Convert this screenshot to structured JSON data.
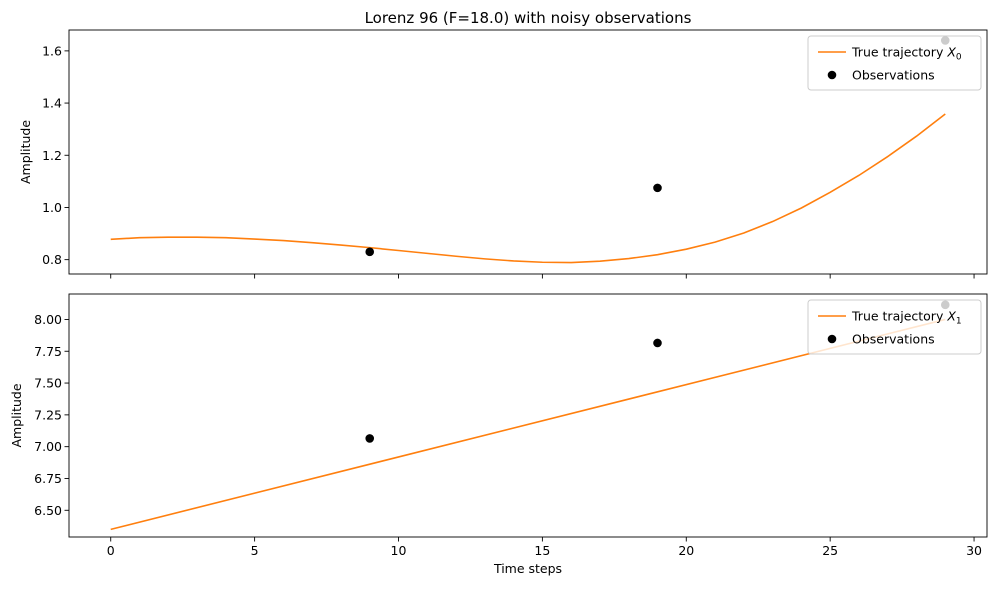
{
  "chart_data": [
    {
      "type": "line",
      "title": "Lorenz 96 (F=18.0) with noisy observations",
      "xlabel": "",
      "ylabel": "Amplitude",
      "xlim": [
        -1.45,
        30.45
      ],
      "ylim": [
        0.745,
        1.68
      ],
      "xticks": [
        0,
        5,
        10,
        15,
        20,
        25,
        30
      ],
      "xtick_labels_visible": false,
      "yticks": [
        0.8,
        1.0,
        1.2,
        1.4,
        1.6
      ],
      "ytick_labels": [
        "0.8",
        "1.0",
        "1.2",
        "1.4",
        "1.6"
      ],
      "grid": false,
      "legend_position": "top-right",
      "series": [
        {
          "name": "True trajectory X0",
          "name_text": "True trajectory ",
          "name_math": "X",
          "name_sub": "0",
          "kind": "line",
          "color": "#ff7f0e",
          "x": [
            0,
            1,
            2,
            3,
            4,
            5,
            6,
            7,
            8,
            9,
            10,
            11,
            12,
            13,
            14,
            15,
            16,
            17,
            18,
            19,
            20,
            21,
            22,
            23,
            24,
            25,
            26,
            27,
            28,
            29
          ],
          "y": [
            0.878,
            0.884,
            0.886,
            0.886,
            0.884,
            0.879,
            0.873,
            0.865,
            0.856,
            0.846,
            0.835,
            0.824,
            0.813,
            0.803,
            0.795,
            0.79,
            0.789,
            0.794,
            0.804,
            0.819,
            0.84,
            0.867,
            0.902,
            0.946,
            0.998,
            1.058,
            1.123,
            1.195,
            1.273,
            1.358
          ]
        },
        {
          "name": "Observations",
          "kind": "scatter",
          "color": "#000000",
          "x": [
            9,
            19,
            29
          ],
          "y": [
            0.83,
            1.075,
            1.64
          ]
        }
      ]
    },
    {
      "type": "line",
      "title": "",
      "xlabel": "Time steps",
      "ylabel": "Amplitude",
      "xlim": [
        -1.45,
        30.45
      ],
      "ylim": [
        6.29,
        8.2
      ],
      "xticks": [
        0,
        5,
        10,
        15,
        20,
        25,
        30
      ],
      "xtick_labels": [
        "0",
        "5",
        "10",
        "15",
        "20",
        "25",
        "30"
      ],
      "yticks": [
        6.5,
        6.75,
        7.0,
        7.25,
        7.5,
        7.75,
        8.0
      ],
      "ytick_labels": [
        "6.50",
        "6.75",
        "7.00",
        "7.25",
        "7.50",
        "7.75",
        "8.00"
      ],
      "grid": false,
      "legend_position": "top-right",
      "series": [
        {
          "name": "True trajectory X1",
          "name_text": "True trajectory ",
          "name_math": "X",
          "name_sub": "1",
          "kind": "line",
          "color": "#ff7f0e",
          "x": [
            0,
            29
          ],
          "y": [
            6.35,
            8.0
          ]
        },
        {
          "name": "Observations",
          "kind": "scatter",
          "color": "#000000",
          "x": [
            9,
            19,
            29
          ],
          "y": [
            7.065,
            7.815,
            8.115
          ]
        }
      ]
    }
  ]
}
